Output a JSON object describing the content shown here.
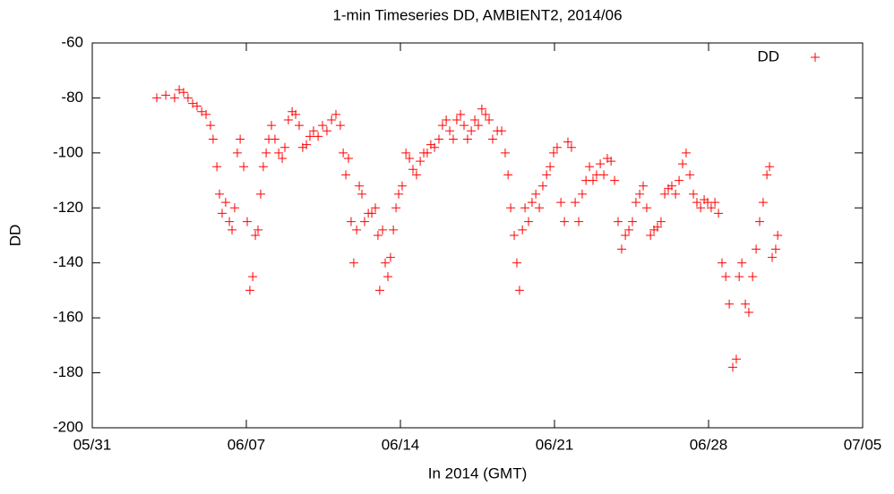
{
  "chart_data": {
    "type": "scatter",
    "title": "1-min Timeseries DD, AMBIENT2, 2014/06",
    "x_label": "In 2014 (GMT)",
    "y_label": "DD",
    "xlim": [
      0,
      35
    ],
    "ylim": [
      -200,
      -60
    ],
    "xticks": [
      {
        "value": 0,
        "label": "05/31"
      },
      {
        "value": 7,
        "label": "06/07"
      },
      {
        "value": 14,
        "label": "06/14"
      },
      {
        "value": 21,
        "label": "06/21"
      },
      {
        "value": 28,
        "label": "06/28"
      },
      {
        "value": 35,
        "label": "07/05"
      }
    ],
    "yticks": [
      -200,
      -180,
      -160,
      -140,
      -120,
      -100,
      -80,
      -60
    ],
    "grid": false,
    "legend": "upper right",
    "marker": "+",
    "x": [
      2.93,
      3.34,
      3.74,
      3.95,
      4.15,
      4.35,
      4.56,
      4.76,
      4.97,
      5.17,
      5.37,
      5.49,
      5.66,
      5.78,
      5.9,
      6.06,
      6.23,
      6.35,
      6.47,
      6.59,
      6.72,
      6.88,
      7.04,
      7.16,
      7.29,
      7.41,
      7.53,
      7.65,
      7.77,
      7.9,
      8.02,
      8.14,
      8.3,
      8.47,
      8.63,
      8.75,
      8.91,
      9.08,
      9.24,
      9.4,
      9.56,
      9.73,
      9.89,
      10.05,
      10.26,
      10.46,
      10.66,
      10.87,
      11.07,
      11.27,
      11.4,
      11.52,
      11.64,
      11.76,
      11.88,
      12.01,
      12.13,
      12.25,
      12.37,
      12.54,
      12.7,
      12.86,
      12.98,
      13.06,
      13.19,
      13.31,
      13.43,
      13.55,
      13.68,
      13.8,
      13.92,
      14.08,
      14.25,
      14.41,
      14.57,
      14.73,
      14.9,
      15.06,
      15.22,
      15.38,
      15.55,
      15.75,
      15.91,
      16.08,
      16.24,
      16.4,
      16.56,
      16.73,
      16.89,
      17.05,
      17.22,
      17.38,
      17.54,
      17.7,
      17.87,
      18.03,
      18.19,
      18.4,
      18.6,
      18.76,
      18.89,
      19.01,
      19.17,
      19.29,
      19.41,
      19.54,
      19.66,
      19.82,
      19.98,
      20.15,
      20.31,
      20.47,
      20.64,
      20.8,
      20.96,
      21.12,
      21.29,
      21.45,
      21.61,
      21.77,
      21.94,
      22.1,
      22.26,
      22.43,
      22.59,
      22.75,
      22.91,
      23.08,
      23.24,
      23.4,
      23.57,
      23.73,
      23.89,
      24.05,
      24.22,
      24.38,
      24.54,
      24.7,
      24.87,
      25.03,
      25.19,
      25.36,
      25.52,
      25.68,
      25.84,
      26.01,
      26.17,
      26.33,
      26.5,
      26.66,
      26.82,
      26.98,
      27.15,
      27.31,
      27.47,
      27.64,
      27.8,
      27.96,
      28.12,
      28.29,
      28.45,
      28.61,
      28.78,
      28.94,
      29.1,
      29.26,
      29.39,
      29.51,
      29.67,
      29.83,
      30.0,
      30.16,
      30.32,
      30.48,
      30.65,
      30.77,
      30.89,
      31.05,
      31.14
    ],
    "series": [
      {
        "name": "DD",
        "color": "#ff0000",
        "values": [
          -80,
          -79,
          -80,
          -77,
          -78,
          -80,
          -82,
          -83,
          -85,
          -86,
          -90,
          -95,
          -105,
          -115,
          -122,
          -118,
          -125,
          -128,
          -120,
          -100,
          -95,
          -105,
          -125,
          -150,
          -145,
          -130,
          -128,
          -115,
          -105,
          -100,
          -95,
          -90,
          -95,
          -100,
          -102,
          -98,
          -88,
          -85,
          -86,
          -90,
          -98,
          -97,
          -94,
          -92,
          -94,
          -90,
          -92,
          -88,
          -86,
          -90,
          -100,
          -108,
          -102,
          -125,
          -140,
          -128,
          -112,
          -115,
          -125,
          -122,
          -122,
          -120,
          -130,
          -150,
          -128,
          -140,
          -145,
          -138,
          -128,
          -120,
          -115,
          -112,
          -100,
          -102,
          -106,
          -108,
          -103,
          -100,
          -100,
          -97,
          -98,
          -95,
          -90,
          -88,
          -92,
          -95,
          -88,
          -86,
          -90,
          -95,
          -92,
          -88,
          -90,
          -84,
          -86,
          -88,
          -95,
          -92,
          -92,
          -100,
          -108,
          -120,
          -130,
          -140,
          -150,
          -128,
          -120,
          -125,
          -118,
          -115,
          -120,
          -112,
          -108,
          -105,
          -100,
          -98,
          -118,
          -125,
          -96,
          -98,
          -118,
          -125,
          -115,
          -110,
          -105,
          -110,
          -108,
          -104,
          -108,
          -102,
          -103,
          -110,
          -125,
          -135,
          -130,
          -128,
          -125,
          -118,
          -115,
          -112,
          -120,
          -130,
          -128,
          -127,
          -125,
          -115,
          -113,
          -112,
          -115,
          -110,
          -104,
          -100,
          -108,
          -115,
          -118,
          -120,
          -117,
          -118,
          -120,
          -118,
          -122,
          -140,
          -145,
          -155,
          -178,
          -175,
          -145,
          -140,
          -155,
          -158,
          -145,
          -135,
          -125,
          -118,
          -108,
          -105,
          -138,
          -135,
          -130
        ]
      }
    ]
  }
}
